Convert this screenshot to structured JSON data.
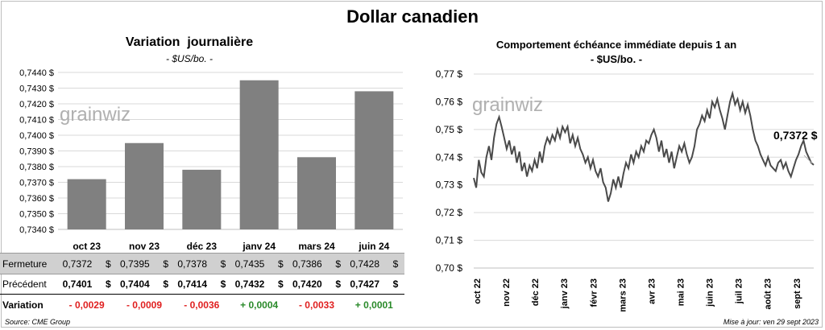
{
  "title": "Dollar canadien",
  "source": "Source: CME Group",
  "updated": "Mise à jour: ven 29 sept 2023",
  "watermark": "grainwiz",
  "table": {
    "labels": {
      "close": "Fermeture",
      "previous": "Précédent",
      "variation": "Variation"
    },
    "currency": "$",
    "close": [
      "0,7372",
      "0,7395",
      "0,7378",
      "0,7435",
      "0,7386",
      "0,7428"
    ],
    "previous": [
      "0,7401",
      "0,7404",
      "0,7414",
      "0,7432",
      "0,7420",
      "0,7427"
    ],
    "variation": [
      "- 0,0029",
      "- 0,0009",
      "- 0,0036",
      "+ 0,0004",
      "- 0,0033",
      "+ 0,0001"
    ]
  },
  "colors": {
    "bar": "#808080",
    "line": "#4a4a4a",
    "negative": "#e02020",
    "positive": "#2a8a2a",
    "close_row": "#d0d0d0"
  },
  "chart_data": [
    {
      "type": "bar",
      "title": "Variation  journalière",
      "subtitle": "- $US/bo. -",
      "categories": [
        "oct 23",
        "nov 23",
        "déc 23",
        "janv 24",
        "mars 24",
        "juin 24"
      ],
      "values": [
        0.7372,
        0.7395,
        0.7378,
        0.7435,
        0.7386,
        0.7428
      ],
      "ylim": [
        0.734,
        0.744
      ],
      "yticks": [
        "0,7340 $",
        "0,7350 $",
        "0,7360 $",
        "0,7370 $",
        "0,7380 $",
        "0,7390 $",
        "0,7400 $",
        "0,7410 $",
        "0,7420 $",
        "0,7430 $",
        "0,7440 $"
      ],
      "grid": true
    },
    {
      "type": "line",
      "title": "Comportement échéance immédiate depuis 1 an",
      "subtitle": "- $US/bo. -",
      "ylim": [
        0.7,
        0.77
      ],
      "yticks": [
        "0,70 $",
        "0,71 $",
        "0,72 $",
        "0,73 $",
        "0,74 $",
        "0,75 $",
        "0,76 $",
        "0,77 $"
      ],
      "xticks": [
        "oct 22",
        "nov 22",
        "déc 22",
        "janv 23",
        "févr 23",
        "mars 23",
        "avr 23",
        "mai 23",
        "juin 23",
        "juil 23",
        "août 23",
        "sept 23"
      ],
      "last_label": "0,7372 $",
      "grid": true,
      "series": [
        {
          "values": [
            0.7325,
            0.729,
            0.739,
            0.7345,
            0.733,
            0.74,
            0.744,
            0.739,
            0.747,
            0.752,
            0.7545,
            0.751,
            0.747,
            0.743,
            0.746,
            0.741,
            0.744,
            0.738,
            0.742,
            0.735,
            0.738,
            0.733,
            0.737,
            0.735,
            0.739,
            0.736,
            0.742,
            0.738,
            0.744,
            0.747,
            0.745,
            0.748,
            0.746,
            0.75,
            0.747,
            0.751,
            0.749,
            0.751,
            0.745,
            0.748,
            0.744,
            0.747,
            0.743,
            0.741,
            0.738,
            0.74,
            0.736,
            0.739,
            0.735,
            0.733,
            0.736,
            0.731,
            0.729,
            0.724,
            0.727,
            0.732,
            0.729,
            0.733,
            0.729,
            0.734,
            0.738,
            0.736,
            0.741,
            0.738,
            0.742,
            0.74,
            0.744,
            0.742,
            0.746,
            0.745,
            0.748,
            0.75,
            0.747,
            0.742,
            0.746,
            0.74,
            0.743,
            0.738,
            0.742,
            0.736,
            0.74,
            0.744,
            0.742,
            0.745,
            0.741,
            0.738,
            0.74,
            0.744,
            0.75,
            0.752,
            0.755,
            0.753,
            0.757,
            0.754,
            0.76,
            0.758,
            0.761,
            0.757,
            0.754,
            0.75,
            0.755,
            0.76,
            0.763,
            0.759,
            0.761,
            0.757,
            0.76,
            0.756,
            0.759,
            0.755,
            0.75,
            0.746,
            0.744,
            0.741,
            0.739,
            0.737,
            0.74,
            0.737,
            0.736,
            0.735,
            0.738,
            0.739,
            0.736,
            0.738,
            0.735,
            0.733,
            0.736,
            0.739,
            0.741,
            0.744,
            0.746,
            0.742,
            0.74,
            0.738,
            0.7372
          ]
        }
      ]
    }
  ]
}
